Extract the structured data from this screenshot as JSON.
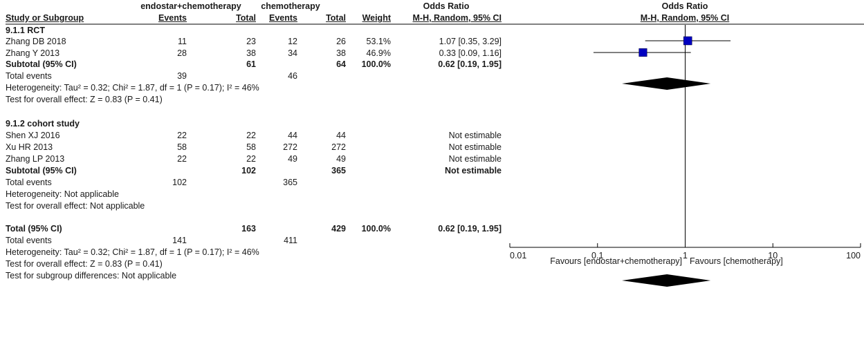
{
  "header": {
    "group1": "endostar+chemotherapy",
    "group2": "chemotherapy",
    "or_title": "Odds Ratio",
    "study_col": "Study or Subgroup",
    "events": "Events",
    "total": "Total",
    "weight": "Weight",
    "method": "M-H, Random, 95% CI",
    "plot_title": "Odds Ratio",
    "plot_method": "M-H, Random, 95% CI"
  },
  "subgroups": [
    {
      "title": "9.1.1 RCT",
      "studies": [
        {
          "name": "Zhang DB 2018",
          "e1": "11",
          "n1": "23",
          "e2": "12",
          "n2": "26",
          "weight": "53.1%",
          "ci": "1.07 [0.35, 3.29]"
        },
        {
          "name": "Zhang Y 2013",
          "e1": "28",
          "n1": "38",
          "e2": "34",
          "n2": "38",
          "weight": "46.9%",
          "ci": "0.33 [0.09, 1.16]"
        }
      ],
      "subtotal": {
        "label": "Subtotal (95% CI)",
        "n1": "61",
        "n2": "64",
        "weight": "100.0%",
        "ci": "0.62 [0.19, 1.95]"
      },
      "total_events": {
        "label": "Total events",
        "e1": "39",
        "e2": "46"
      },
      "heterogeneity": "Heterogeneity: Tau² = 0.32; Chi² = 1.87, df = 1 (P = 0.17); I² = 46%",
      "overall": "Test for overall effect: Z = 0.83 (P = 0.41)"
    },
    {
      "title": "9.1.2 cohort study",
      "studies": [
        {
          "name": "Shen XJ 2016",
          "e1": "22",
          "n1": "22",
          "e2": "44",
          "n2": "44",
          "weight": "",
          "ci": "Not estimable"
        },
        {
          "name": "Xu HR 2013",
          "e1": "58",
          "n1": "58",
          "e2": "272",
          "n2": "272",
          "weight": "",
          "ci": "Not estimable"
        },
        {
          "name": "Zhang LP 2013",
          "e1": "22",
          "n1": "22",
          "e2": "49",
          "n2": "49",
          "weight": "",
          "ci": "Not estimable"
        }
      ],
      "subtotal": {
        "label": "Subtotal (95% CI)",
        "n1": "102",
        "n2": "365",
        "weight": "",
        "ci": "Not estimable"
      },
      "total_events": {
        "label": "Total events",
        "e1": "102",
        "e2": "365"
      },
      "heterogeneity": "Heterogeneity: Not applicable",
      "overall": "Test for overall effect: Not applicable"
    }
  ],
  "total": {
    "label": "Total (95% CI)",
    "n1": "163",
    "n2": "429",
    "weight": "100.0%",
    "ci": "0.62 [0.19, 1.95]",
    "events_label": "Total events",
    "e1": "141",
    "e2": "411",
    "heterogeneity": "Heterogeneity: Tau² = 0.32; Chi² = 1.87, df = 1 (P = 0.17); I² = 46%",
    "overall": "Test for overall effect: Z = 0.83 (P = 0.41)",
    "subgroup_diff": "Test for subgroup differences: Not applicable"
  },
  "chart_data": {
    "type": "forest",
    "scale": "log",
    "xlim": [
      0.01,
      100
    ],
    "ticks": [
      {
        "value": 0.01,
        "label": "0.01"
      },
      {
        "value": 0.1,
        "label": "0.1"
      },
      {
        "value": 1,
        "label": "1"
      },
      {
        "value": 10,
        "label": "10"
      },
      {
        "value": 100,
        "label": "100"
      }
    ],
    "favours_left": "Favours [endostar+chemotherapy]",
    "favours_right": "Favours [chemotherapy]",
    "marker_color": "#0000c0",
    "diamond_color": "#000000",
    "studies": [
      {
        "name": "Zhang DB 2018",
        "or": 1.07,
        "lo": 0.35,
        "hi": 3.29,
        "weight": 53.1
      },
      {
        "name": "Zhang Y 2013",
        "or": 0.33,
        "lo": 0.09,
        "hi": 1.16,
        "weight": 46.9
      }
    ],
    "pooled": [
      {
        "name": "Subtotal 9.1.1 RCT",
        "or": 0.62,
        "lo": 0.19,
        "hi": 1.95
      },
      {
        "name": "Total",
        "or": 0.62,
        "lo": 0.19,
        "hi": 1.95
      }
    ]
  }
}
